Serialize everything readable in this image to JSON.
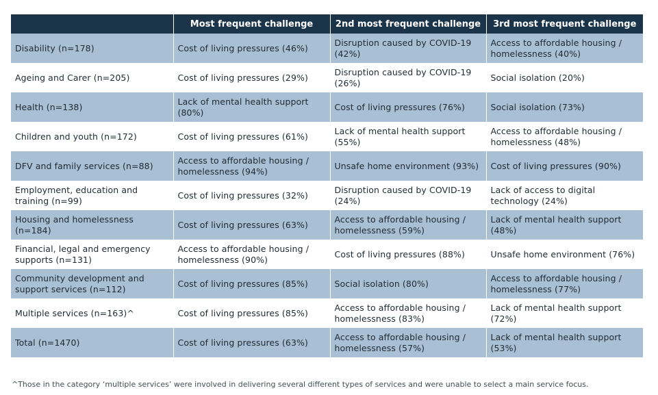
{
  "table": {
    "headers": [
      "",
      "Most frequent challenge",
      "2nd most frequent challenge",
      "3rd most frequent challenge"
    ],
    "rows": [
      [
        "Disability (n=178)",
        "Cost of living pressures (46%)",
        "Disruption caused by COVID-19 (42%)",
        "Access to affordable housing / homelessness (40%)"
      ],
      [
        "Ageing and Carer (n=205)",
        "Cost of living pressures (29%)",
        "Disruption caused by COVID-19 (26%)",
        "Social isolation (20%)"
      ],
      [
        "Health (n=138)",
        "Lack of mental health support (80%)",
        "Cost of living pressures (76%)",
        "Social isolation (73%)"
      ],
      [
        "Children and youth (n=172)",
        "Cost of living pressures (61%)",
        "Lack of mental health support (55%)",
        "Access to affordable housing / homelessness (48%)"
      ],
      [
        "DFV and family services (n=88)",
        "Access to affordable housing / homelessness (94%)",
        "Unsafe home environment (93%)",
        "Cost of living pressures (90%)"
      ],
      [
        "Employment, education and training (n=99)",
        "Cost of living pressures (32%)",
        "Disruption caused by COVID-19 (24%)",
        "Lack of access to digital technology (24%)"
      ],
      [
        "Housing and homelessness (n=184)",
        "Cost of living pressures (63%)",
        "Access to affordable housing / homelessness (59%)",
        "Lack of mental health support (48%)"
      ],
      [
        "Financial, legal and emergency supports (n=131)",
        "Access to affordable housing / homelessness (90%)",
        "Cost of living pressures (88%)",
        "Unsafe home environment (76%)"
      ],
      [
        "Community development and support services (n=112)",
        "Cost of living pressures (85%)",
        "Social isolation (80%)",
        "Access to affordable housing / homelessness (77%)"
      ],
      [
        "Multiple services (n=163)^",
        "Cost of living pressures (85%)",
        "Access to affordable housing / homelessness (83%)",
        "Lack of mental health support (72%)"
      ],
      [
        "Total (n=1470)",
        "Cost of living pressures (63%)",
        "Access to affordable housing / homelessness (57%)",
        "Lack of mental health support (53%)"
      ]
    ]
  },
  "footnote": "^Those in the category ‘multiple services’ were involved in delivering several different types of services and were unable to select a main service focus.",
  "colors": {
    "header_bg": "#1b3449",
    "shaded_row": "#a8bfd4",
    "plain_row": "#ffffff"
  }
}
